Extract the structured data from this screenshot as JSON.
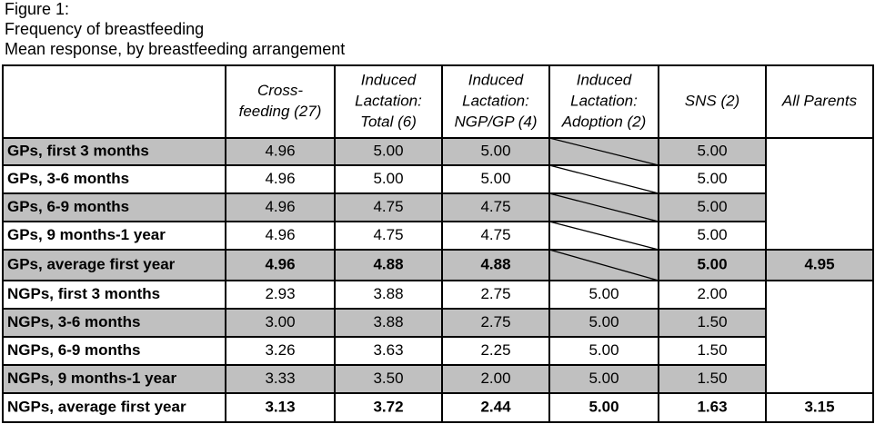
{
  "header": {
    "title": [
      "Figure 1:",
      "Frequency of breastfeeding",
      "Mean response, by breastfeeding arrangement"
    ]
  },
  "table": {
    "columns": [
      [
        "Cross-",
        "feeding (27)"
      ],
      [
        "Induced",
        "Lactation:",
        "Total (6)"
      ],
      [
        "Induced",
        "Lactation:",
        "NGP/GP (4)"
      ],
      [
        "Induced",
        "Lactation:",
        "Adoption (2)"
      ],
      [
        "SNS (2)"
      ],
      [
        "All Parents"
      ]
    ],
    "rows": [
      {
        "label": "GPs, first 3 months",
        "cells": [
          "4.96",
          "5.00",
          "5.00",
          null,
          "5.00",
          null
        ],
        "shaded": true
      },
      {
        "label": "GPs, 3-6 months",
        "cells": [
          "4.96",
          "5.00",
          "5.00",
          null,
          "5.00",
          null
        ],
        "shaded": false
      },
      {
        "label": "GPs, 6-9 months",
        "cells": [
          "4.96",
          "4.75",
          "4.75",
          null,
          "5.00",
          null
        ],
        "shaded": true
      },
      {
        "label": "GPs, 9 months-1 year",
        "cells": [
          "4.96",
          "4.75",
          "4.75",
          null,
          "5.00",
          null
        ],
        "shaded": false
      },
      {
        "label": "GPs, average first year",
        "cells": [
          "4.96",
          "4.88",
          "4.88",
          null,
          "5.00",
          "4.95"
        ],
        "shaded": true,
        "bold": true
      },
      {
        "label": "NGPs, first 3 months",
        "cells": [
          "2.93",
          "3.88",
          "2.75",
          "5.00",
          "2.00",
          null
        ],
        "shaded": false
      },
      {
        "label": "NGPs, 3-6 months",
        "cells": [
          "3.00",
          "3.88",
          "2.75",
          "5.00",
          "1.50",
          null
        ],
        "shaded": true
      },
      {
        "label": "NGPs, 6-9 months",
        "cells": [
          "3.26",
          "3.63",
          "2.25",
          "5.00",
          "1.50",
          null
        ],
        "shaded": false
      },
      {
        "label": "NGPs, 9 months-1 year",
        "cells": [
          "3.33",
          "3.50",
          "2.00",
          "5.00",
          "1.50",
          null
        ],
        "shaded": true
      },
      {
        "label": "NGPs, average first year",
        "cells": [
          "3.13",
          "3.72",
          "2.44",
          "5.00",
          "1.63",
          "3.15"
        ],
        "shaded": false,
        "bold": true
      }
    ]
  }
}
